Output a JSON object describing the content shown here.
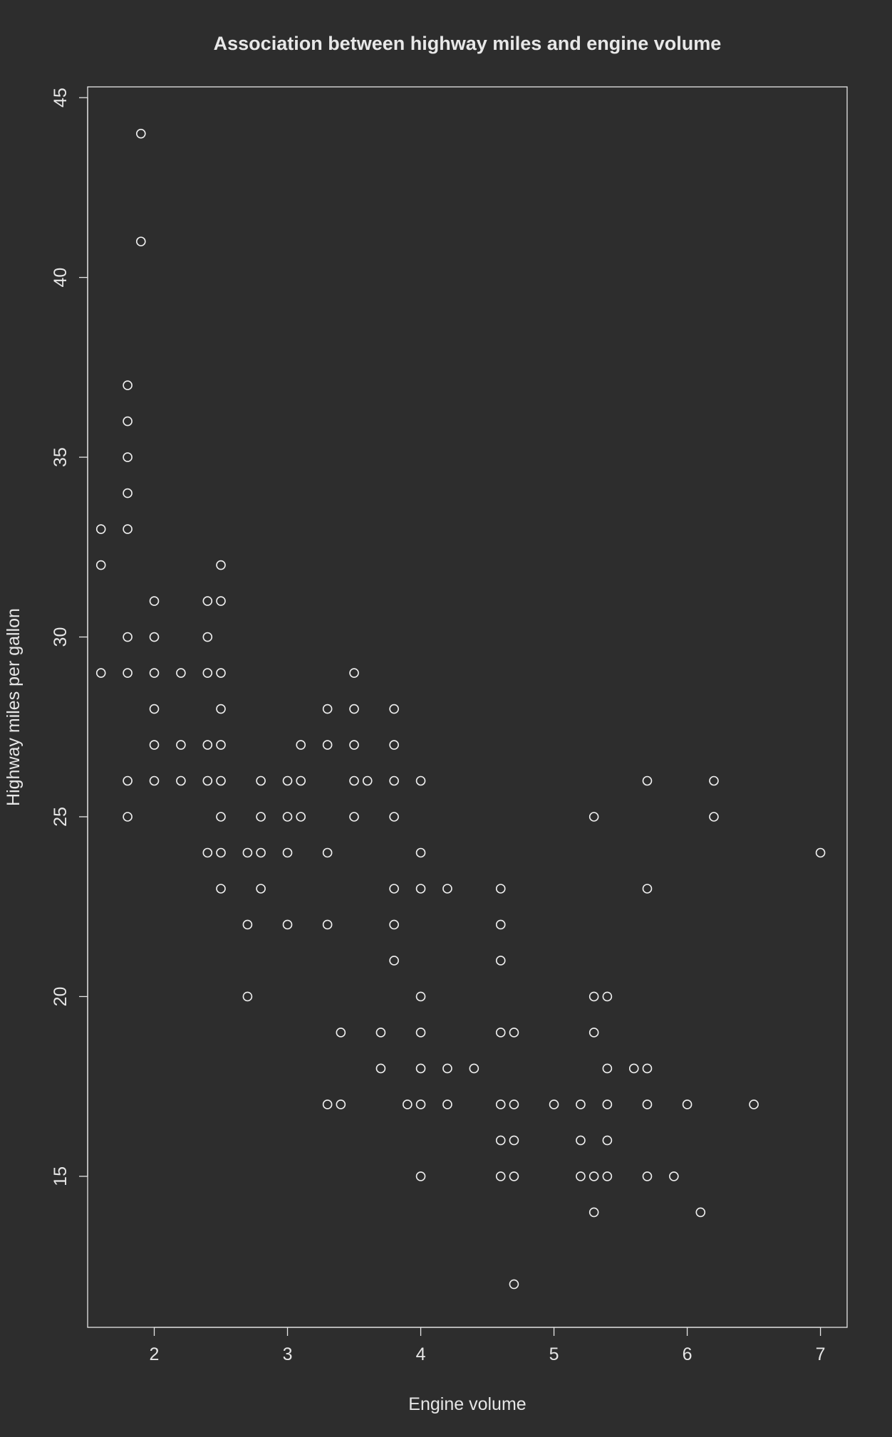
{
  "chart_data": {
    "type": "scatter",
    "title": "Association between highway miles and engine volume",
    "xlabel": "Engine volume",
    "ylabel": "Highway miles per gallon",
    "xlim": [
      1.5,
      7.2
    ],
    "ylim": [
      10.8,
      45.3
    ],
    "x_ticks": [
      2,
      3,
      4,
      5,
      6,
      7
    ],
    "x_tick_labels": [
      "2",
      "3",
      "4",
      "5",
      "6",
      "7"
    ],
    "y_ticks": [
      15,
      20,
      25,
      30,
      35,
      40,
      45
    ],
    "y_tick_labels": [
      "15",
      "20",
      "25",
      "30",
      "35",
      "40",
      "45"
    ],
    "grid": false,
    "legend": "none",
    "colors": {
      "background": "#2d2d2d",
      "foreground": "#e6e6e6",
      "marker": "#f0f0f0"
    },
    "marker": "open-circle",
    "points": [
      [
        1.9,
        44
      ],
      [
        1.9,
        41
      ],
      [
        1.8,
        37
      ],
      [
        1.8,
        36
      ],
      [
        1.8,
        35
      ],
      [
        1.8,
        34
      ],
      [
        1.8,
        33
      ],
      [
        1.8,
        30
      ],
      [
        1.8,
        29
      ],
      [
        1.8,
        26
      ],
      [
        1.8,
        25
      ],
      [
        1.6,
        33
      ],
      [
        1.6,
        32
      ],
      [
        1.6,
        29
      ],
      [
        2.0,
        31
      ],
      [
        2.0,
        30
      ],
      [
        2.0,
        29
      ],
      [
        2.0,
        28
      ],
      [
        2.0,
        27
      ],
      [
        2.0,
        26
      ],
      [
        2.2,
        29
      ],
      [
        2.2,
        27
      ],
      [
        2.2,
        26
      ],
      [
        2.4,
        31
      ],
      [
        2.4,
        30
      ],
      [
        2.4,
        29
      ],
      [
        2.4,
        27
      ],
      [
        2.4,
        26
      ],
      [
        2.4,
        24
      ],
      [
        2.5,
        32
      ],
      [
        2.5,
        31
      ],
      [
        2.5,
        29
      ],
      [
        2.5,
        28
      ],
      [
        2.5,
        27
      ],
      [
        2.5,
        26
      ],
      [
        2.5,
        25
      ],
      [
        2.5,
        24
      ],
      [
        2.5,
        23
      ],
      [
        2.7,
        24
      ],
      [
        2.7,
        22
      ],
      [
        2.7,
        20
      ],
      [
        2.8,
        26
      ],
      [
        2.8,
        25
      ],
      [
        2.8,
        24
      ],
      [
        2.8,
        23
      ],
      [
        3.0,
        26
      ],
      [
        3.0,
        25
      ],
      [
        3.0,
        24
      ],
      [
        3.0,
        22
      ],
      [
        3.1,
        27
      ],
      [
        3.1,
        26
      ],
      [
        3.1,
        25
      ],
      [
        3.3,
        28
      ],
      [
        3.3,
        27
      ],
      [
        3.3,
        24
      ],
      [
        3.3,
        22
      ],
      [
        3.3,
        17
      ],
      [
        3.4,
        19
      ],
      [
        3.4,
        17
      ],
      [
        3.5,
        29
      ],
      [
        3.5,
        28
      ],
      [
        3.5,
        27
      ],
      [
        3.5,
        26
      ],
      [
        3.5,
        25
      ],
      [
        3.6,
        26
      ],
      [
        3.7,
        19
      ],
      [
        3.7,
        18
      ],
      [
        3.8,
        28
      ],
      [
        3.8,
        27
      ],
      [
        3.8,
        26
      ],
      [
        3.8,
        25
      ],
      [
        3.8,
        23
      ],
      [
        3.8,
        22
      ],
      [
        3.8,
        21
      ],
      [
        3.9,
        17
      ],
      [
        4.0,
        26
      ],
      [
        4.0,
        24
      ],
      [
        4.0,
        23
      ],
      [
        4.0,
        20
      ],
      [
        4.0,
        19
      ],
      [
        4.0,
        18
      ],
      [
        4.0,
        17
      ],
      [
        4.0,
        15
      ],
      [
        4.2,
        23
      ],
      [
        4.2,
        18
      ],
      [
        4.2,
        17
      ],
      [
        4.4,
        18
      ],
      [
        4.6,
        23
      ],
      [
        4.6,
        22
      ],
      [
        4.6,
        21
      ],
      [
        4.6,
        19
      ],
      [
        4.6,
        17
      ],
      [
        4.6,
        16
      ],
      [
        4.6,
        15
      ],
      [
        4.7,
        19
      ],
      [
        4.7,
        17
      ],
      [
        4.7,
        16
      ],
      [
        4.7,
        15
      ],
      [
        4.7,
        12
      ],
      [
        5.0,
        17
      ],
      [
        5.2,
        17
      ],
      [
        5.2,
        16
      ],
      [
        5.2,
        15
      ],
      [
        5.3,
        25
      ],
      [
        5.3,
        20
      ],
      [
        5.3,
        19
      ],
      [
        5.3,
        15
      ],
      [
        5.3,
        14
      ],
      [
        5.4,
        20
      ],
      [
        5.4,
        18
      ],
      [
        5.4,
        17
      ],
      [
        5.4,
        16
      ],
      [
        5.4,
        15
      ],
      [
        5.6,
        18
      ],
      [
        5.7,
        26
      ],
      [
        5.7,
        23
      ],
      [
        5.7,
        18
      ],
      [
        5.7,
        17
      ],
      [
        5.7,
        15
      ],
      [
        5.9,
        15
      ],
      [
        6.0,
        17
      ],
      [
        6.1,
        14
      ],
      [
        6.2,
        26
      ],
      [
        6.2,
        25
      ],
      [
        6.5,
        17
      ],
      [
        7.0,
        24
      ]
    ]
  }
}
